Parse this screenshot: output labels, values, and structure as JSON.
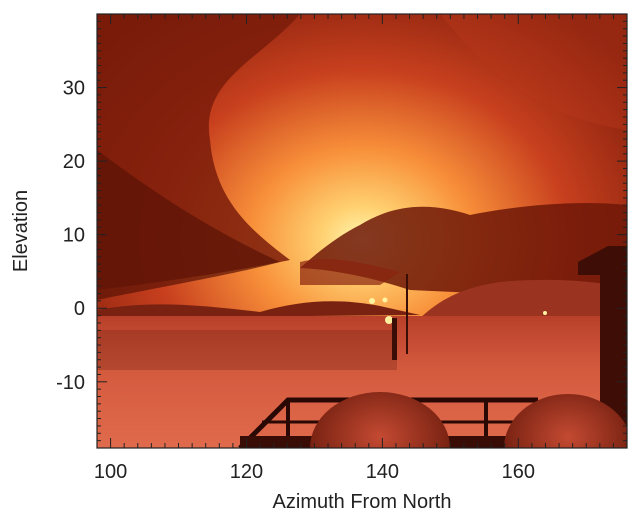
{
  "figure": {
    "xlabel": "Azimuth From North",
    "ylabel": "Elevation",
    "xlim": [
      98,
      176
    ],
    "ylim": [
      -19,
      40
    ],
    "x_ticks": [
      {
        "value": 100,
        "label": "100"
      },
      {
        "value": 120,
        "label": "120"
      },
      {
        "value": 140,
        "label": "140"
      },
      {
        "value": 160,
        "label": "160"
      }
    ],
    "y_ticks": [
      {
        "value": 30,
        "label": "30"
      },
      {
        "value": 20,
        "label": "20"
      },
      {
        "value": 10,
        "label": "10"
      },
      {
        "value": 0,
        "label": "0"
      },
      {
        "value": -10,
        "label": "-10"
      }
    ],
    "x_minor_step": 2,
    "y_minor_step": 1,
    "colors": {
      "sky_glow": "#fff2a0",
      "sky_orange": "#f07a2a",
      "cloud_dark": "#6a1808",
      "snow": "#d8553a",
      "ground_shadow": "#3e0e06",
      "axis": "#222222"
    }
  }
}
